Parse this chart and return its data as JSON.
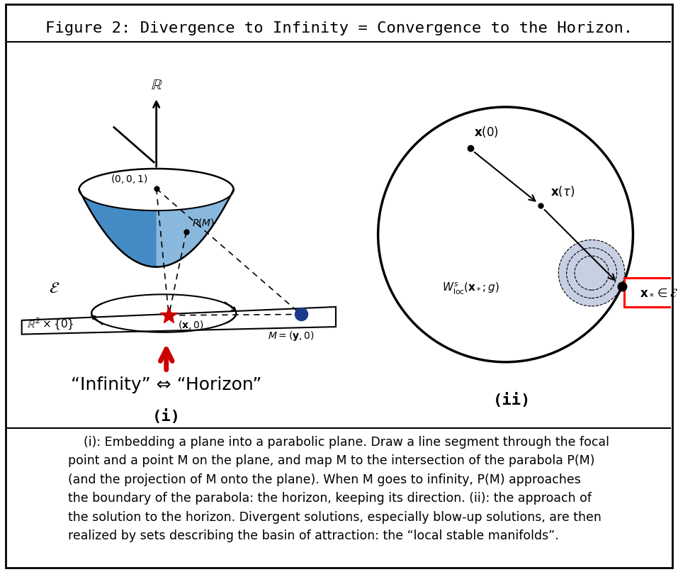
{
  "title": "Figure 2: Divergence to Infinity = Convergence to the Horizon.",
  "title_fontsize": 16,
  "caption": "    (i): Embedding a plane into a parabolic plane. Draw a line segment through the focal\npoint and a point M on the plane, and map M to the intersection of the parabola P(M)\n(and the projection of M onto the plane). When M goes to infinity, P(M) approaches\nthe boundary of the parabola: the horizon, keeping its direction. (ii): the approach of\nthe solution to the horizon. Divergent solutions, especially blow-up solutions, are then\nrealized by sets describing the basin of attraction: the “local stable manifolds”.",
  "caption_fontsize": 12.5,
  "background_color": "#ffffff",
  "border_color": "#000000",
  "panel_i_label": "(i)",
  "panel_ii_label": "(ii)",
  "infinity_horizon_text": "“Infinity” ⇔ “Horizon”",
  "bowl_color_light": "#a8cce8",
  "bowl_color_dark": "#2f7fc0",
  "bowl_edge_color": "#000000",
  "star_color": "#cc0000",
  "blue_dot_color": "#1a3a8a",
  "red_arrow_color": "#cc0000",
  "shaded_circle_color": "#9aa8cc"
}
